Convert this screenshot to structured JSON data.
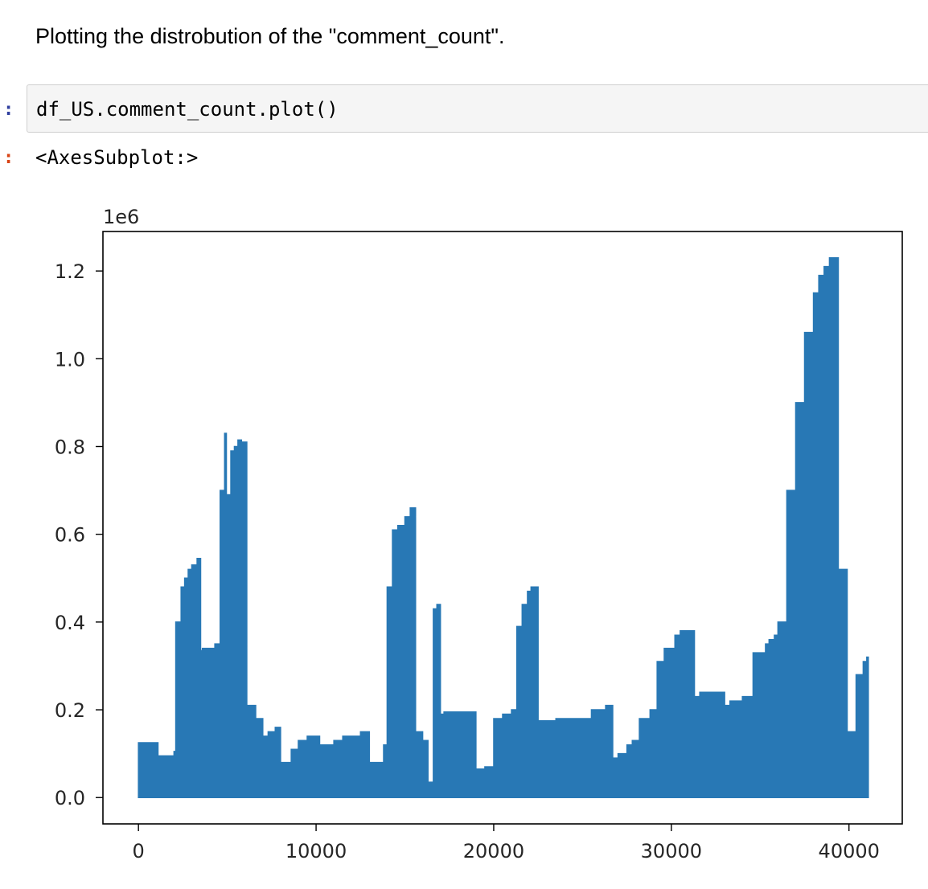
{
  "notebook": {
    "markdown_text": "Plotting the distrobution of the \"comment_count\".",
    "input_prompt": ":",
    "code": "df_US.comment_count.plot()",
    "output_prompt": ":",
    "output_text": "<AxesSubplot:>"
  },
  "colors": {
    "series": "#2878b5",
    "prompt_in": "#303f9f",
    "prompt_out": "#d84315"
  },
  "chart_data": {
    "type": "line",
    "title": "",
    "xlabel": "",
    "ylabel": "",
    "y_offset_label": "1e6",
    "xlim": [
      -2000,
      43000
    ],
    "ylim": [
      -0.06,
      1.29
    ],
    "xticks": [
      0,
      10000,
      20000,
      30000,
      40000
    ],
    "xtick_labels": [
      "0",
      "10000",
      "20000",
      "30000",
      "40000"
    ],
    "yticks": [
      0.0,
      0.2,
      0.4,
      0.6,
      0.8,
      1.0,
      1.2
    ],
    "ytick_labels": [
      "0.0",
      "0.2",
      "0.4",
      "0.6",
      "0.8",
      "1.0",
      "1.2"
    ],
    "grid": false,
    "legend": "none",
    "series": [
      {
        "note_units": "comment_count in millions (x1e6)",
        "x": [
          0,
          1000,
          1100,
          2000,
          2100,
          2400,
          2600,
          2800,
          3000,
          3300,
          3500,
          3600,
          4300,
          4600,
          4850,
          4950,
          5200,
          5400,
          5600,
          5800,
          6100,
          6200,
          6600,
          7000,
          7300,
          7700,
          8000,
          8600,
          9000,
          9500,
          10200,
          11000,
          11500,
          12500,
          13000,
          13800,
          14000,
          14300,
          14600,
          15000,
          15300,
          15600,
          16000,
          16300,
          16600,
          16800,
          17000,
          17200,
          18000,
          18500,
          19000,
          19500,
          20000,
          20500,
          21000,
          21300,
          21600,
          21900,
          22100,
          22500,
          23500,
          24500,
          25500,
          26300,
          26700,
          27000,
          27500,
          27800,
          28200,
          28800,
          29200,
          29600,
          30200,
          30500,
          31300,
          31600,
          33000,
          33300,
          34000,
          34600,
          35300,
          35500,
          35800,
          36000,
          36500,
          37000,
          37500,
          38000,
          38300,
          38600,
          38900,
          39400,
          39900,
          40400,
          40800,
          41000
        ],
        "y": [
          0.125,
          0.125,
          0.095,
          0.105,
          0.4,
          0.48,
          0.5,
          0.52,
          0.53,
          0.545,
          0.335,
          0.34,
          0.35,
          0.7,
          0.83,
          0.69,
          0.79,
          0.8,
          0.815,
          0.81,
          0.21,
          0.21,
          0.18,
          0.14,
          0.15,
          0.16,
          0.08,
          0.11,
          0.13,
          0.14,
          0.12,
          0.13,
          0.14,
          0.15,
          0.08,
          0.12,
          0.48,
          0.61,
          0.62,
          0.64,
          0.66,
          0.15,
          0.13,
          0.035,
          0.43,
          0.44,
          0.19,
          0.195,
          0.195,
          0.195,
          0.065,
          0.07,
          0.18,
          0.19,
          0.2,
          0.39,
          0.44,
          0.47,
          0.48,
          0.175,
          0.18,
          0.18,
          0.2,
          0.21,
          0.09,
          0.1,
          0.12,
          0.13,
          0.18,
          0.2,
          0.31,
          0.34,
          0.37,
          0.38,
          0.23,
          0.24,
          0.21,
          0.22,
          0.23,
          0.33,
          0.35,
          0.36,
          0.37,
          0.4,
          0.7,
          0.9,
          1.06,
          1.15,
          1.19,
          1.21,
          1.23,
          0.52,
          0.15,
          0.28,
          0.31,
          0.32
        ]
      }
    ]
  }
}
